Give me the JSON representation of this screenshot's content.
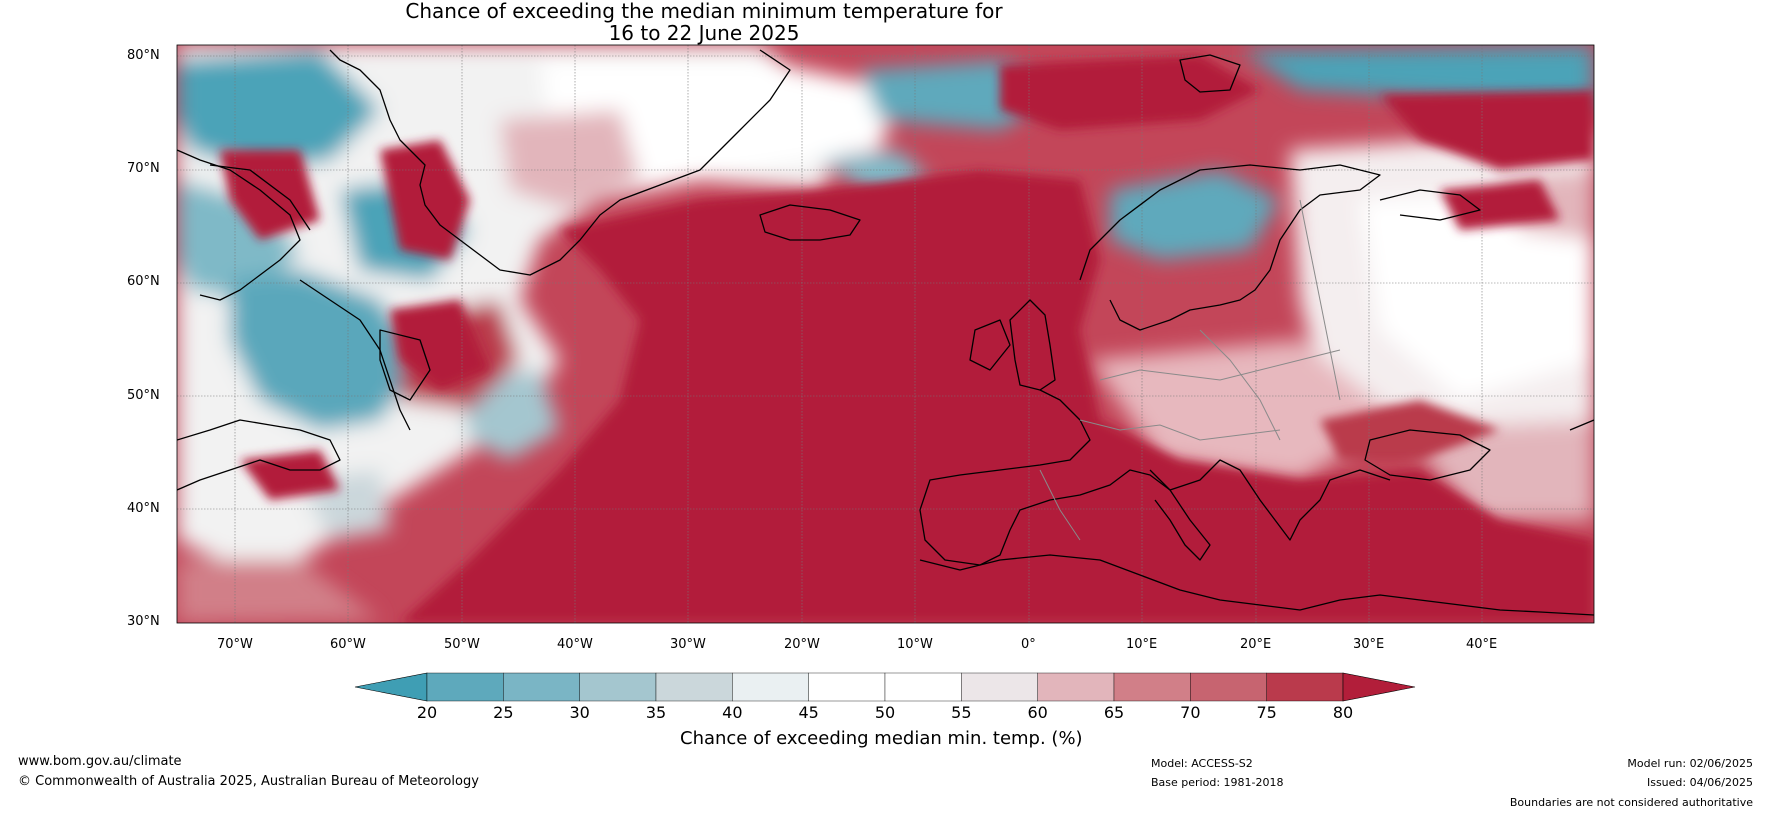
{
  "title": {
    "line1": "Chance of exceeding the median minimum temperature for",
    "line2": "16 to 22 June 2025"
  },
  "map": {
    "lat_labels": [
      "80°N",
      "70°N",
      "60°N",
      "50°N",
      "40°N",
      "30°N"
    ],
    "lon_labels": [
      "70°W",
      "60°W",
      "50°W",
      "40°W",
      "30°W",
      "20°W",
      "10°W",
      "0°",
      "10°E",
      "20°E",
      "30°E",
      "40°E"
    ],
    "colors": {
      "low": "#3f9eb4",
      "mid": "#ffffff",
      "high": "#b21e3a",
      "coast": "#000000",
      "border": "#808080"
    }
  },
  "colorbar": {
    "ticks": [
      "20",
      "25",
      "30",
      "35",
      "40",
      "45",
      "50",
      "55",
      "60",
      "65",
      "70",
      "75",
      "80"
    ],
    "colors": [
      "#5ea9bc",
      "#7ab5c5",
      "#a4c6cf",
      "#cbd7db",
      "#eaf0f2",
      "#ffffff",
      "#ffffff",
      "#ece6e8",
      "#e2b5bb",
      "#d17f88",
      "#c76470",
      "#ba3a4c"
    ],
    "under_color": "#3f9eb4",
    "over_color": "#b21e3a",
    "label": "Chance of exceeding median min. temp. (%)"
  },
  "footer": {
    "site": "www.bom.gov.au/climate",
    "copyright": "© Commonwealth of Australia 2025, Australian Bureau of Meteorology",
    "model": "Model: ACCESS-S2",
    "base_period": "Base period: 1981-2018",
    "model_run": "Model run: 02/06/2025",
    "issued": "Issued: 04/06/2025",
    "disclaimer": "Boundaries are not considered authoritative"
  }
}
